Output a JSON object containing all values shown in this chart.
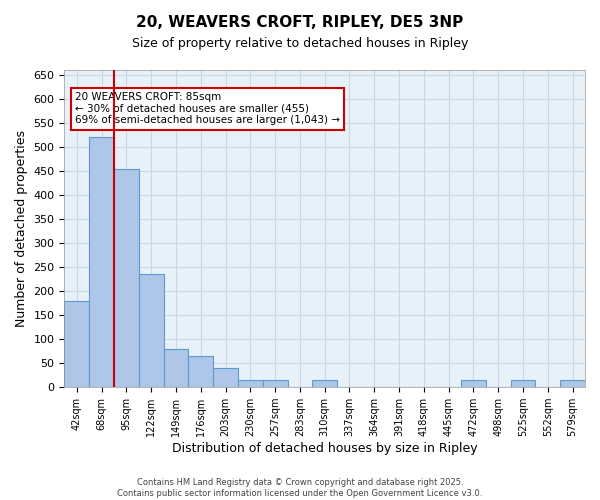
{
  "title_line1": "20, WEAVERS CROFT, RIPLEY, DE5 3NP",
  "title_line2": "Size of property relative to detached houses in Ripley",
  "xlabel": "Distribution of detached houses by size in Ripley",
  "ylabel": "Number of detached properties",
  "bins": [
    "42sqm",
    "68sqm",
    "95sqm",
    "122sqm",
    "149sqm",
    "176sqm",
    "203sqm",
    "230sqm",
    "257sqm",
    "283sqm",
    "310sqm",
    "337sqm",
    "364sqm",
    "391sqm",
    "418sqm",
    "445sqm",
    "472sqm",
    "498sqm",
    "525sqm",
    "552sqm",
    "579sqm"
  ],
  "values": [
    180,
    520,
    455,
    235,
    80,
    65,
    40,
    15,
    15,
    0,
    15,
    0,
    0,
    0,
    0,
    0,
    15,
    0,
    15,
    0,
    15
  ],
  "bar_color": "#aec6e8",
  "bar_edge_color": "#5b9bd5",
  "red_line_index": 1.5,
  "annotation_text": "20 WEAVERS CROFT: 85sqm\n← 30% of detached houses are smaller (455)\n69% of semi-detached houses are larger (1,043) →",
  "annotation_box_color": "#ffffff",
  "annotation_box_edge": "#cc0000",
  "red_line_color": "#cc0000",
  "grid_color": "#c8d8e8",
  "background_color": "#e8f0f8",
  "footer_line1": "Contains HM Land Registry data © Crown copyright and database right 2025.",
  "footer_line2": "Contains public sector information licensed under the Open Government Licence v3.0.",
  "ylim": [
    0,
    660
  ],
  "yticks": [
    0,
    50,
    100,
    150,
    200,
    250,
    300,
    350,
    400,
    450,
    500,
    550,
    600,
    650
  ]
}
